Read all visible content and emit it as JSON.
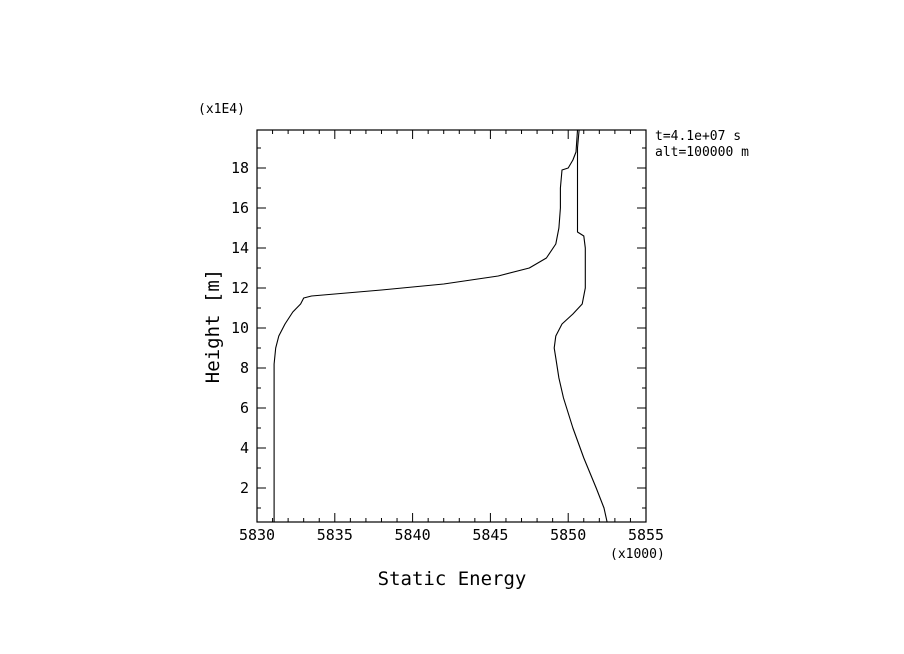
{
  "chart_data": {
    "type": "line",
    "title": "",
    "xlabel": "Static Energy",
    "ylabel": "Height [m]",
    "x_multiplier": "(x1000)",
    "y_multiplier": "(x1E4)",
    "xlim": [
      5830,
      5855
    ],
    "ylim": [
      0.3,
      19.9
    ],
    "x_ticks": [
      "5830",
      "5835",
      "5840",
      "5845",
      "5850",
      "5855"
    ],
    "y_ticks": [
      "2",
      "4",
      "6",
      "8",
      "10",
      "12",
      "14",
      "16",
      "18"
    ],
    "annotations": [
      "t=4.1e+07 s",
      "alt=100000 m"
    ],
    "grid": false,
    "series": [
      {
        "x": [
          5831.1,
          5831.1,
          5831.2,
          5831.4,
          5831.8,
          5832.3,
          5832.8,
          5833.0,
          5833.5,
          5835.0,
          5838.0,
          5842.0,
          5845.5,
          5847.5,
          5848.6,
          5849.2,
          5849.4,
          5849.5,
          5849.5,
          5849.6,
          5850.0,
          5850.3,
          5850.5,
          5850.6
        ],
        "y": [
          0.3,
          8.2,
          9.0,
          9.6,
          10.2,
          10.8,
          11.2,
          11.5,
          11.6,
          11.7,
          11.9,
          12.2,
          12.6,
          13.0,
          13.5,
          14.2,
          15.0,
          16.0,
          17.0,
          17.9,
          18.0,
          18.4,
          18.8,
          19.9
        ]
      },
      {
        "x": [
          5852.5,
          5852.3,
          5851.8,
          5851.0,
          5850.3,
          5849.7,
          5849.4,
          5849.2,
          5849.1,
          5849.2,
          5849.6,
          5850.3,
          5850.9,
          5851.1,
          5851.1,
          5851.1,
          5851.0,
          5850.6,
          5850.6,
          5850.6,
          5850.7
        ],
        "y": [
          0.3,
          1.0,
          2.0,
          3.5,
          5.0,
          6.5,
          7.5,
          8.5,
          9.0,
          9.6,
          10.2,
          10.7,
          11.2,
          12.0,
          13.0,
          14.0,
          14.6,
          14.8,
          17.0,
          19.0,
          19.9
        ]
      }
    ]
  }
}
